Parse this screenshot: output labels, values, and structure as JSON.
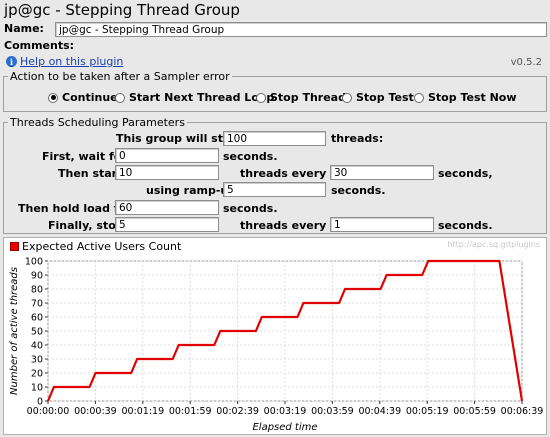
{
  "window": {
    "title": "jp@gc - Stepping Thread Group"
  },
  "name_field": {
    "label": "Name:",
    "value": "jp@gc - Stepping Thread Group"
  },
  "comments": {
    "label": "Comments:",
    "value": ""
  },
  "help": {
    "link_text": "Help on this plugin",
    "version": "v0.5.2"
  },
  "sampler_error": {
    "legend": "Action to be taken after a Sampler error",
    "options": [
      {
        "label": "Continue",
        "selected": true
      },
      {
        "label": "Start Next Thread Loop",
        "selected": false
      },
      {
        "label": "Stop Thread",
        "selected": false
      },
      {
        "label": "Stop Test",
        "selected": false
      },
      {
        "label": "Stop Test Now",
        "selected": false
      }
    ]
  },
  "scheduling": {
    "legend": "Threads Scheduling Parameters",
    "group_start_label": "This group will start",
    "group_start_value": "100",
    "threads_unit": "threads:",
    "first_wait_label": "First, wait for",
    "first_wait_value": "0",
    "seconds_unit": "seconds.",
    "then_start_label": "Then start",
    "then_start_value": "10",
    "threads_every_label": "threads every",
    "threads_every_value": "30",
    "seconds_comma_unit": "seconds,",
    "ramp_up_label": "using ramp-up",
    "ramp_up_value": "5",
    "hold_label": "Then hold load for",
    "hold_value": "60",
    "stop_label": "Finally, stop",
    "stop_value": "5",
    "stop_every_label": "threads every",
    "stop_every_value": "1"
  },
  "chart_legend": "Expected Active Users Count",
  "watermark": "http://apc.sq.gitplugins",
  "chart_data": {
    "type": "line",
    "title": "",
    "xlabel": "Elapsed time",
    "ylabel": "Number of active threads",
    "ylim": [
      0,
      100
    ],
    "yticks": [
      0,
      10,
      20,
      30,
      40,
      50,
      60,
      70,
      80,
      90,
      100
    ],
    "xticks": [
      "00:00:00",
      "00:00:39",
      "00:01:19",
      "00:01:59",
      "00:02:39",
      "00:03:19",
      "00:03:59",
      "00:04:39",
      "00:05:19",
      "00:05:59",
      "00:06:39"
    ],
    "xlim_seconds": [
      0,
      399
    ],
    "grid": true,
    "series": [
      {
        "name": "Expected Active Users Count",
        "color": "#e00000",
        "points_seconds": [
          [
            0,
            0
          ],
          [
            5,
            10
          ],
          [
            35,
            10
          ],
          [
            40,
            20
          ],
          [
            70,
            20
          ],
          [
            75,
            30
          ],
          [
            105,
            30
          ],
          [
            110,
            40
          ],
          [
            140,
            40
          ],
          [
            145,
            50
          ],
          [
            175,
            50
          ],
          [
            180,
            60
          ],
          [
            210,
            60
          ],
          [
            215,
            70
          ],
          [
            245,
            70
          ],
          [
            250,
            80
          ],
          [
            280,
            80
          ],
          [
            285,
            90
          ],
          [
            315,
            90
          ],
          [
            320,
            100
          ],
          [
            380,
            100
          ],
          [
            399,
            0
          ]
        ]
      }
    ]
  }
}
